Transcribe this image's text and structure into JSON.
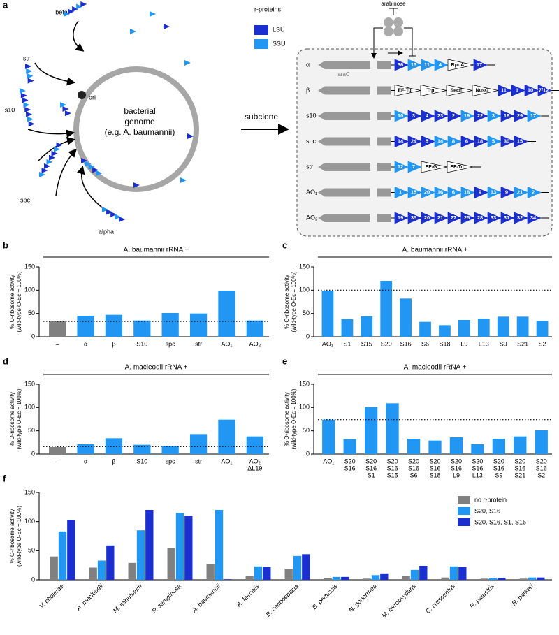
{
  "diagram": {
    "panel": "a",
    "legend_title": "r-proteins",
    "legend": [
      "LSU",
      "SSU"
    ],
    "colors": {
      "LSU": "#1b2fd1",
      "SSU": "#2196f3"
    },
    "operon_labels": [
      "beta",
      "str",
      "s10",
      "spc",
      "alpha"
    ],
    "ori": "ori",
    "genome": [
      "bacterial",
      "genome",
      "(e.g. A. baumannii)"
    ],
    "subclone": "subclone",
    "inducer": "arabinose",
    "regulator": "araC",
    "operons": [
      {
        "name": "α",
        "genes": [
          {
            "label": "36",
            "kind": "LSU"
          },
          {
            "label": "13",
            "kind": "SSU"
          },
          {
            "label": "11",
            "kind": "SSU"
          },
          {
            "label": "4",
            "kind": "SSU"
          },
          {
            "label": "RpoA"
          },
          {
            "label": "17",
            "kind": "LSU"
          }
        ]
      },
      {
        "name": "β",
        "genes": [
          {
            "label": "EF-Tu"
          },
          {
            "label": "Trp"
          },
          {
            "label": "SecE"
          },
          {
            "label": "NusG"
          },
          {
            "label": "11",
            "kind": "LSU"
          },
          {
            "label": "1",
            "kind": "LSU"
          },
          {
            "label": "10",
            "kind": "LSU"
          },
          {
            "label": "7/12",
            "kind": "LSU"
          }
        ]
      },
      {
        "name": "s10",
        "genes": [
          {
            "label": "10",
            "kind": "SSU"
          },
          {
            "label": "3",
            "kind": "LSU"
          },
          {
            "label": "4",
            "kind": "LSU"
          },
          {
            "label": "23",
            "kind": "LSU"
          },
          {
            "label": "2",
            "kind": "LSU"
          },
          {
            "label": "19",
            "kind": "SSU"
          },
          {
            "label": "22",
            "kind": "LSU"
          },
          {
            "label": "3",
            "kind": "SSU"
          },
          {
            "label": "16",
            "kind": "LSU"
          },
          {
            "label": "29",
            "kind": "LSU"
          },
          {
            "label": "17",
            "kind": "SSU"
          }
        ]
      },
      {
        "name": "spc",
        "genes": [
          {
            "label": "14",
            "kind": "LSU"
          },
          {
            "label": "24",
            "kind": "LSU"
          },
          {
            "label": "5",
            "kind": "LSU"
          },
          {
            "label": "14",
            "kind": "SSU"
          },
          {
            "label": "8",
            "kind": "SSU"
          },
          {
            "label": "6",
            "kind": "LSU"
          },
          {
            "label": "18",
            "kind": "LSU"
          },
          {
            "label": "5",
            "kind": "SSU"
          },
          {
            "label": "30",
            "kind": "LSU"
          },
          {
            "label": "15",
            "kind": "LSU"
          }
        ]
      },
      {
        "name": "str",
        "genes": [
          {
            "label": "12",
            "kind": "SSU"
          },
          {
            "label": "7",
            "kind": "SSU"
          },
          {
            "label": "EF-G"
          },
          {
            "label": "EF-Tu"
          }
        ]
      },
      {
        "name": "AO₁",
        "genes": [
          {
            "label": "1",
            "kind": "SSU"
          },
          {
            "label": "15",
            "kind": "SSU"
          },
          {
            "label": "20",
            "kind": "SSU"
          },
          {
            "label": "16",
            "kind": "SSU"
          },
          {
            "label": "6",
            "kind": "SSU"
          },
          {
            "label": "18",
            "kind": "SSU"
          },
          {
            "label": "9",
            "kind": "LSU"
          },
          {
            "label": "13",
            "kind": "SSU"
          },
          {
            "label": "9",
            "kind": "LSU"
          },
          {
            "label": "21",
            "kind": "SSU"
          },
          {
            "label": "2",
            "kind": "SSU"
          }
        ]
      },
      {
        "name": "AO₂",
        "genes": [
          {
            "label": "19",
            "kind": "LSU"
          },
          {
            "label": "35",
            "kind": "LSU"
          },
          {
            "label": "20",
            "kind": "LSU"
          },
          {
            "label": "21",
            "kind": "LSU"
          },
          {
            "label": "27",
            "kind": "LSU"
          },
          {
            "label": "25",
            "kind": "LSU"
          },
          {
            "label": "28",
            "kind": "LSU"
          },
          {
            "label": "33",
            "kind": "LSU"
          },
          {
            "label": "31",
            "kind": "LSU"
          },
          {
            "label": "32",
            "kind": "LSU"
          },
          {
            "label": "34",
            "kind": "LSU"
          }
        ]
      }
    ]
  },
  "chart_data": [
    {
      "type": "bar",
      "panel": "b",
      "title": "A. baumannii rRNA +",
      "ylabel": [
        "% O-ribosome activity",
        "(wild-type O-Ec = 100%)"
      ],
      "categories": [
        "–",
        "α",
        "β",
        "S10",
        "spc",
        "str",
        "AO₁",
        "AO₂"
      ],
      "values": [
        33,
        45,
        47,
        35,
        51,
        50,
        99,
        35
      ],
      "color": "#2196f3",
      "first_color": "#808080",
      "reference_line": 33,
      "ylim": [
        0,
        150
      ],
      "yticks": [
        0,
        50,
        100,
        150
      ]
    },
    {
      "type": "bar",
      "panel": "c",
      "title": "A. baumannii rRNA +",
      "ylabel": [
        "% O-ribosome activity",
        "(wild-type O-Ec = 100%)"
      ],
      "categories": [
        "AO₁",
        "S1",
        "S15",
        "S20",
        "S16",
        "S6",
        "S18",
        "L9",
        "L13",
        "S9",
        "S21",
        "S2"
      ],
      "values": [
        99,
        38,
        44,
        120,
        82,
        32,
        25,
        36,
        39,
        43,
        43,
        34
      ],
      "color": "#2196f3",
      "reference_line": 100,
      "ylim": [
        0,
        150
      ],
      "yticks": [
        0,
        50,
        100,
        150
      ]
    },
    {
      "type": "bar",
      "panel": "d",
      "title": "A. macleodii rRNA +",
      "ylabel": [
        "% O-ribosome activity",
        "(wild-type O-Ec = 100%)"
      ],
      "categories": [
        "–",
        "α",
        "β",
        "S10",
        "spc",
        "str",
        "AO₁",
        [
          "AO₂",
          "ΔL19"
        ]
      ],
      "values": [
        15,
        21,
        34,
        20,
        18,
        43,
        74,
        38
      ],
      "color": "#2196f3",
      "first_color": "#808080",
      "reference_line": 16,
      "ylim": [
        0,
        150
      ],
      "yticks": [
        0,
        50,
        100,
        150
      ]
    },
    {
      "type": "bar",
      "panel": "e",
      "title": "A. macleodii rRNA +",
      "ylabel": [
        "% O-ribosome activity",
        "(wild-type O-Ec = 100%)"
      ],
      "categories": [
        "AO₁",
        [
          "S20",
          "S16"
        ],
        [
          "S20",
          "S16",
          "S1"
        ],
        [
          "S20",
          "S16",
          "S15"
        ],
        [
          "S20",
          "S16",
          "S6"
        ],
        [
          "S20",
          "S16",
          "S18"
        ],
        [
          "S20",
          "S16",
          "L9"
        ],
        [
          "S20",
          "S16",
          "L13"
        ],
        [
          "S20",
          "S16",
          "S9"
        ],
        [
          "S20",
          "S16",
          "S21"
        ],
        [
          "S20",
          "S16",
          "S2"
        ]
      ],
      "values": [
        74,
        32,
        101,
        109,
        33,
        29,
        36,
        21,
        33,
        38,
        51
      ],
      "color": "#2196f3",
      "reference_line": 74,
      "ylim": [
        0,
        150
      ],
      "yticks": [
        0,
        50,
        100,
        150
      ]
    },
    {
      "type": "grouped_bar",
      "panel": "f",
      "ylabel": [
        "% O-ribosome activity",
        "(wild-type O-Ec = 100%)"
      ],
      "categories": [
        "V. cholerae",
        "A. macleodii",
        "M. minutulum",
        "P. aeruginosa",
        "A. baumannii",
        "A. faecalis",
        "B. cenocepacia",
        "B. pertussis",
        "N. gonorrhea",
        "M. ferrooxydans",
        "C. crescentus",
        "R. palustris",
        "R. parkeri"
      ],
      "series": [
        {
          "name": "no r-protein",
          "color": "#808080",
          "values": [
            40,
            21,
            29,
            55,
            27,
            6,
            19,
            3,
            2,
            7,
            4,
            2,
            2
          ]
        },
        {
          "name": "S20, S16",
          "color": "#2196f3",
          "values": [
            83,
            33,
            85,
            115,
            120,
            23,
            41,
            5,
            8,
            17,
            23,
            3,
            4
          ]
        },
        {
          "name": "S20, S16, S1, S15",
          "color": "#1b2fd1",
          "values": [
            103,
            59,
            120,
            110,
            1,
            22,
            44,
            5,
            11,
            24,
            22,
            3,
            4
          ]
        }
      ],
      "legend": "top-right",
      "ylim": [
        0,
        150
      ],
      "yticks": [
        0,
        50,
        100,
        150
      ]
    }
  ]
}
